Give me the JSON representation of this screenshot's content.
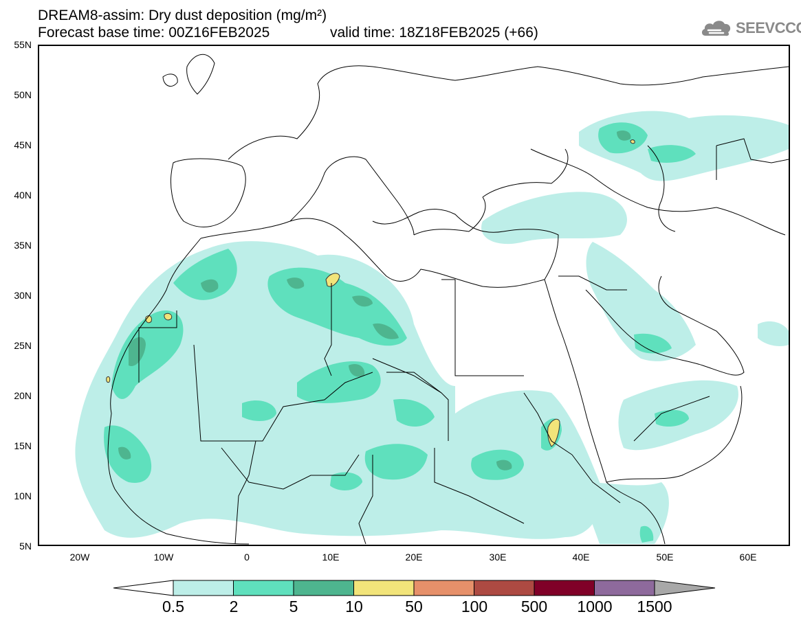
{
  "title": {
    "line1": "DREAM8-assim: Dry dust deposition (mg/m²)",
    "line2": "Forecast base time: 00Z16FEB2025",
    "valid": "valid time: 18Z18FEB2025 (+66)"
  },
  "logo": {
    "text": "SEEVCCC",
    "icon": "cloud-icon"
  },
  "map": {
    "lat_range": [
      5,
      55
    ],
    "lon_range": [
      -25,
      65
    ],
    "lat_labels": [
      "55N",
      "50N",
      "45N",
      "40N",
      "35N",
      "30N",
      "25N",
      "20N",
      "15N",
      "10N",
      "5N"
    ],
    "lon_labels": [
      "20W",
      "10W",
      "0",
      "10E",
      "20E",
      "30E",
      "40E",
      "50E",
      "60E"
    ]
  },
  "legend": {
    "thresholds": [
      "0.5",
      "2",
      "5",
      "10",
      "50",
      "100",
      "500",
      "1000",
      "1500"
    ],
    "colors": [
      "#bdeee8",
      "#5fe0bd",
      "#4eb58f",
      "#f2e47a",
      "#e6906a",
      "#ad4a42",
      "#800028",
      "#8e6a9c",
      "#a8a8a8"
    ]
  }
}
